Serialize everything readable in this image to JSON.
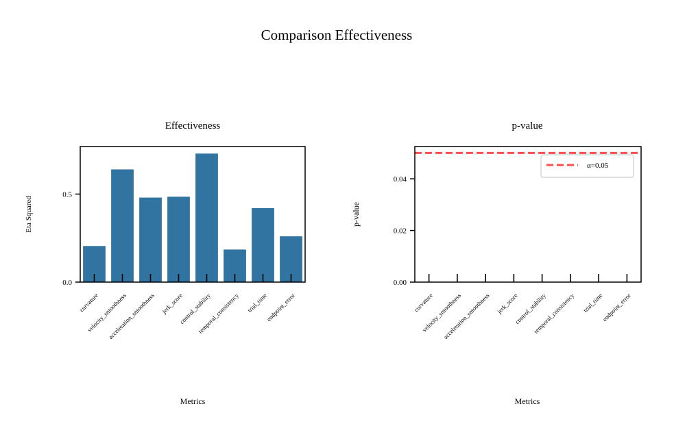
{
  "figure": {
    "title": "Comparison Effectiveness"
  },
  "chart_data": [
    {
      "type": "bar",
      "title": "Effectiveness",
      "xlabel": "Metrics",
      "ylabel": "Eta Squared",
      "categories": [
        "curvature",
        "velocity_smoothness",
        "acceleration_smoothness",
        "jerk_score",
        "control_stability",
        "temporal_consistency",
        "trial_time",
        "endpoint_error"
      ],
      "values": [
        0.205,
        0.64,
        0.48,
        0.485,
        0.73,
        0.185,
        0.42,
        0.26
      ],
      "ylim": [
        0,
        0.77
      ],
      "yticks": [
        0.0,
        0.5
      ],
      "ytick_labels": [
        "0.0",
        "0.5"
      ],
      "bar_color": "#3274a1"
    },
    {
      "type": "bar",
      "title": "p-value",
      "xlabel": "Metrics",
      "ylabel": "p-value",
      "categories": [
        "curvature",
        "velocity_smoothness",
        "acceleration_smoothness",
        "jerk_score",
        "control_stability",
        "temporal_consistency",
        "trial_time",
        "endpoint_error"
      ],
      "values": [
        0,
        0,
        0,
        0,
        0,
        0,
        0,
        0
      ],
      "ylim": [
        0,
        0.0525
      ],
      "yticks": [
        0.0,
        0.02,
        0.04
      ],
      "ytick_labels": [
        "0.00",
        "0.02",
        "0.04"
      ],
      "bar_color": "#3274a1",
      "reference_line": {
        "y": 0.05,
        "label": "α=0.05",
        "color": "#ff4d4d",
        "style": "dashed"
      },
      "legend": {
        "position": "top-right",
        "entries": [
          "α=0.05"
        ]
      }
    }
  ]
}
